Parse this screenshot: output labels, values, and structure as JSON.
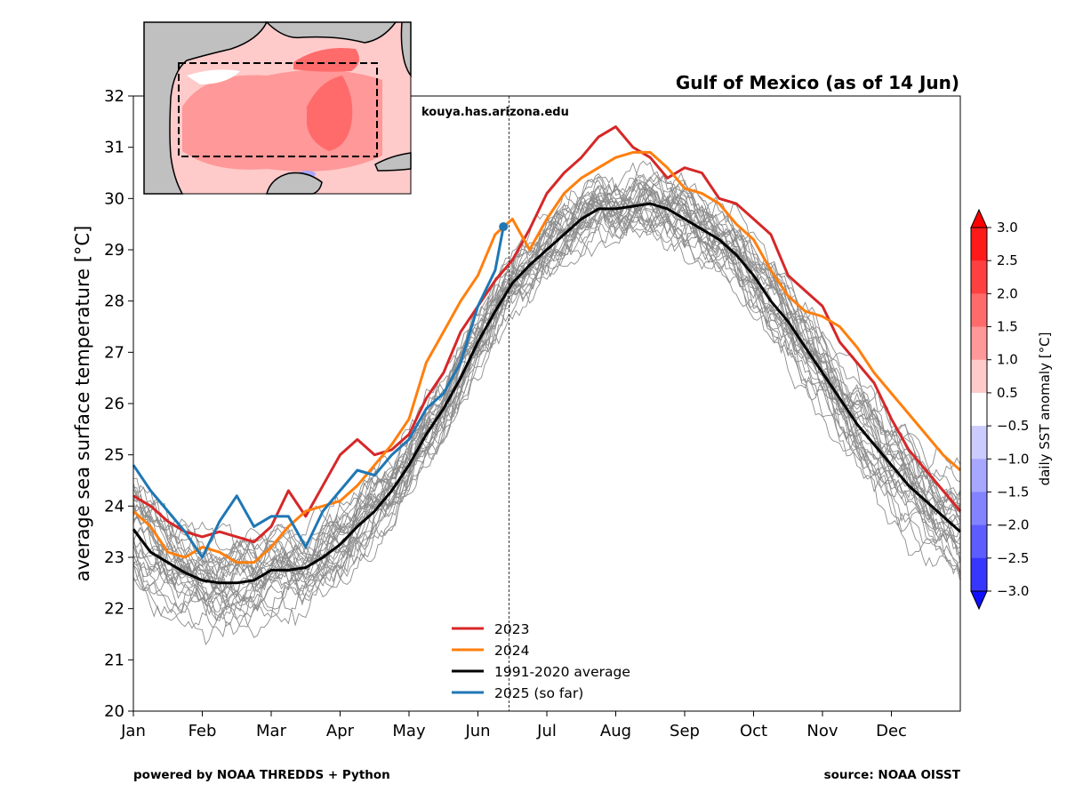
{
  "header": {
    "title": "Gulf of Mexico (as of 14 Jun)",
    "watermark": "kouya.has.arizona.edu"
  },
  "footer": {
    "left_credit": "powered by NOAA THREDDS + Python",
    "right_credit": "source: NOAA OISST"
  },
  "colorbar": {
    "label": "daily SST anomaly [°C]",
    "ticks": [
      "3.0",
      "2.5",
      "2.0",
      "1.5",
      "1.0",
      "0.5",
      "−0.5",
      "−1.0",
      "−1.5",
      "−2.0",
      "−2.5",
      "−3.0"
    ],
    "levels": [
      3.0,
      2.5,
      2.0,
      1.5,
      1.0,
      0.5,
      -0.5,
      -1.0,
      -1.5,
      -2.0,
      -2.5,
      -3.0
    ],
    "band_colors": [
      "#ff1a1a",
      "#ff4040",
      "#ff6b6b",
      "#ff9898",
      "#ffcaca",
      "#ffffff",
      "#cbcbff",
      "#a7a7ff",
      "#8383ff",
      "#5c5cff",
      "#3636ff"
    ],
    "extend_max_color": "#ff0000",
    "extend_min_color": "#1010ff"
  },
  "inset_map": {
    "land_color": "#c0c0c0",
    "anomaly_colors": [
      "#ffffff",
      "#ffcaca",
      "#ff9898",
      "#ff6b6b"
    ]
  },
  "chart_data": {
    "type": "line",
    "title": "Gulf of Mexico (as of 14 Jun)",
    "xlabel": "",
    "ylabel": "average sea surface temperature [°C]",
    "x_unit": "month",
    "xlim": [
      0,
      12
    ],
    "ylim": [
      20,
      32
    ],
    "yticks": [
      "20",
      "21",
      "22",
      "23",
      "24",
      "25",
      "26",
      "27",
      "28",
      "29",
      "30",
      "31",
      "32"
    ],
    "xticks": [
      "Jan",
      "Feb",
      "Mar",
      "Apr",
      "May",
      "Jun",
      "Jul",
      "Aug",
      "Sep",
      "Oct",
      "Nov",
      "Dec"
    ],
    "grid": false,
    "current_date_marker": 5.45,
    "legend_position": "lower center",
    "series": [
      {
        "name": "2023",
        "color": "#d62728",
        "x": [
          0,
          0.25,
          0.5,
          0.75,
          1,
          1.25,
          1.5,
          1.75,
          2,
          2.25,
          2.5,
          2.75,
          3,
          3.25,
          3.5,
          3.75,
          4,
          4.25,
          4.5,
          4.75,
          5,
          5.25,
          5.5,
          5.75,
          6,
          6.25,
          6.5,
          6.75,
          7,
          7.25,
          7.5,
          7.75,
          8,
          8.25,
          8.5,
          8.75,
          9,
          9.25,
          9.5,
          9.75,
          10,
          10.25,
          10.5,
          10.75,
          11,
          11.25,
          11.5,
          11.75,
          12
        ],
        "values": [
          24.2,
          24.0,
          23.7,
          23.5,
          23.4,
          23.5,
          23.4,
          23.3,
          23.6,
          24.3,
          23.8,
          24.4,
          25.0,
          25.3,
          25.0,
          25.1,
          25.4,
          26.1,
          26.6,
          27.4,
          27.9,
          28.4,
          28.8,
          29.4,
          30.1,
          30.5,
          30.8,
          31.2,
          31.4,
          31.0,
          30.8,
          30.4,
          30.6,
          30.5,
          30.0,
          29.9,
          29.6,
          29.3,
          28.5,
          28.2,
          27.9,
          27.2,
          26.8,
          26.4,
          25.7,
          25.1,
          24.7,
          24.3,
          23.9
        ]
      },
      {
        "name": "2024",
        "color": "#ff7f0e",
        "x": [
          0,
          0.25,
          0.5,
          0.75,
          1,
          1.25,
          1.5,
          1.75,
          2,
          2.25,
          2.5,
          2.75,
          3,
          3.25,
          3.5,
          3.75,
          4,
          4.25,
          4.5,
          4.75,
          5,
          5.25,
          5.5,
          5.75,
          6,
          6.25,
          6.5,
          6.75,
          7,
          7.25,
          7.5,
          7.75,
          8,
          8.25,
          8.5,
          8.75,
          9,
          9.25,
          9.5,
          9.75,
          10,
          10.25,
          10.5,
          10.75,
          11,
          11.25,
          11.5,
          11.75,
          12
        ],
        "values": [
          23.9,
          23.6,
          23.1,
          23.0,
          23.2,
          23.1,
          22.9,
          22.9,
          23.2,
          23.6,
          23.9,
          24.0,
          24.1,
          24.4,
          24.8,
          25.2,
          25.7,
          26.8,
          27.4,
          28.0,
          28.5,
          29.3,
          29.6,
          29.0,
          29.6,
          30.1,
          30.4,
          30.6,
          30.8,
          30.9,
          30.9,
          30.6,
          30.2,
          30.1,
          29.9,
          29.5,
          29.2,
          28.6,
          28.1,
          27.8,
          27.7,
          27.5,
          27.1,
          26.6,
          26.2,
          25.8,
          25.4,
          25.0,
          24.7
        ]
      },
      {
        "name": "1991-2020 average",
        "color": "#000000",
        "x": [
          0,
          0.25,
          0.5,
          0.75,
          1,
          1.25,
          1.5,
          1.75,
          2,
          2.25,
          2.5,
          2.75,
          3,
          3.25,
          3.5,
          3.75,
          4,
          4.25,
          4.5,
          4.75,
          5,
          5.25,
          5.5,
          5.75,
          6,
          6.25,
          6.5,
          6.75,
          7,
          7.25,
          7.5,
          7.75,
          8,
          8.25,
          8.5,
          8.75,
          9,
          9.25,
          9.5,
          9.75,
          10,
          10.25,
          10.5,
          10.75,
          11,
          11.25,
          11.5,
          11.75,
          12
        ],
        "values": [
          23.55,
          23.1,
          22.9,
          22.7,
          22.55,
          22.5,
          22.5,
          22.55,
          22.75,
          22.75,
          22.8,
          23.0,
          23.25,
          23.6,
          23.9,
          24.3,
          24.8,
          25.4,
          25.9,
          26.5,
          27.2,
          27.8,
          28.35,
          28.7,
          29.0,
          29.3,
          29.6,
          29.8,
          29.8,
          29.85,
          29.9,
          29.8,
          29.6,
          29.4,
          29.2,
          28.9,
          28.5,
          28.0,
          27.6,
          27.1,
          26.6,
          26.1,
          25.6,
          25.2,
          24.8,
          24.4,
          24.1,
          23.8,
          23.5
        ]
      },
      {
        "name": "2025 (so far)",
        "color": "#1f77b4",
        "x": [
          0,
          0.25,
          0.5,
          0.75,
          1,
          1.25,
          1.5,
          1.75,
          2,
          2.25,
          2.5,
          2.75,
          3,
          3.25,
          3.5,
          3.75,
          4,
          4.25,
          4.5,
          4.75,
          5,
          5.25,
          5.37
        ],
        "values": [
          24.8,
          24.3,
          23.9,
          23.5,
          23.0,
          23.7,
          24.2,
          23.6,
          23.8,
          23.8,
          23.2,
          23.9,
          24.3,
          24.7,
          24.6,
          25.0,
          25.3,
          25.9,
          26.2,
          26.8,
          27.9,
          28.6,
          29.45
        ]
      }
    ]
  }
}
